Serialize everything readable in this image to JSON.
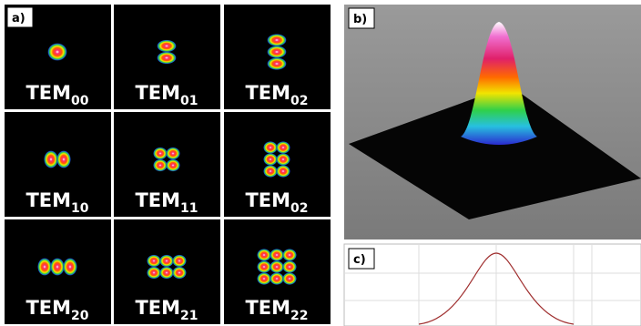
{
  "panels": {
    "a": "a)",
    "b": "b)",
    "c": "c)"
  },
  "tiles": [
    {
      "label": "TEM",
      "sub": "00"
    },
    {
      "label": "TEM",
      "sub": "01"
    },
    {
      "label": "TEM",
      "sub": "02"
    },
    {
      "label": "TEM",
      "sub": "10"
    },
    {
      "label": "TEM",
      "sub": "11"
    },
    {
      "label": "TEM",
      "sub": "02"
    },
    {
      "label": "TEM",
      "sub": "20"
    },
    {
      "label": "TEM",
      "sub": "21"
    },
    {
      "label": "TEM",
      "sub": "22"
    }
  ]
}
